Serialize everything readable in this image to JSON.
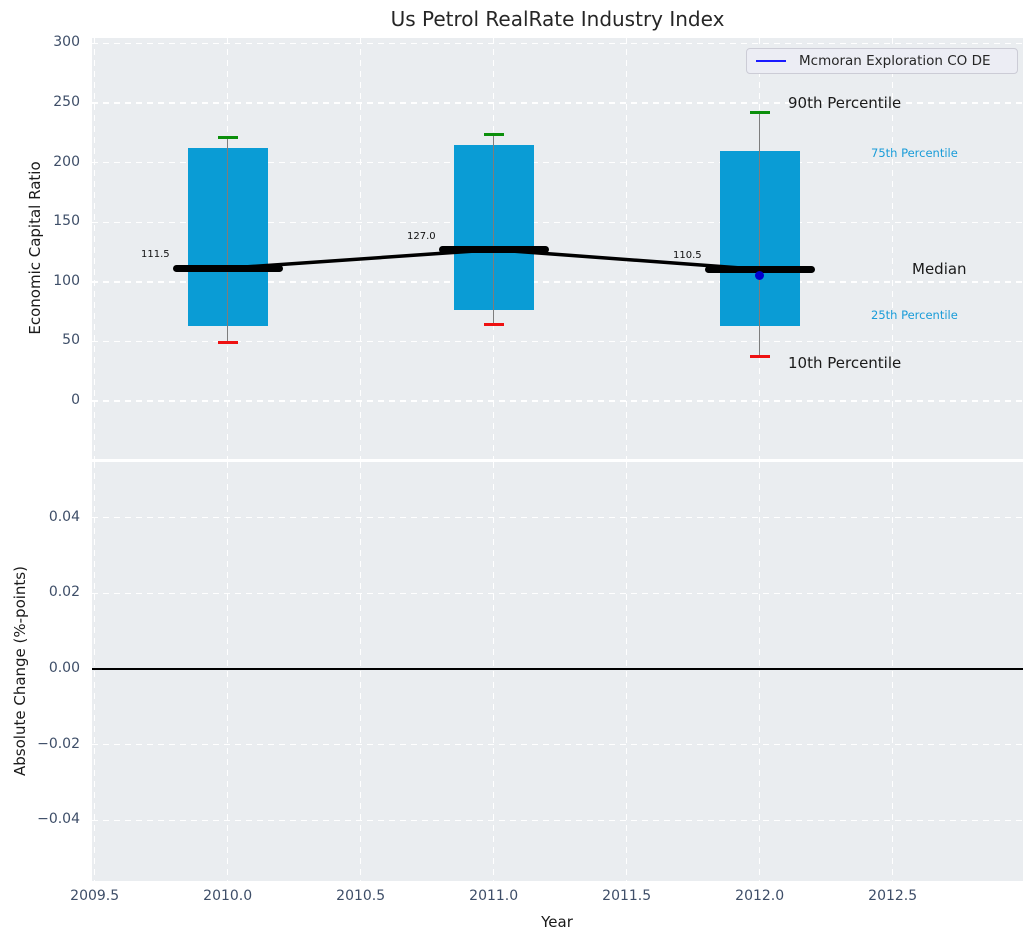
{
  "title": "Us Petrol RealRate Industry Index",
  "legend": {
    "label": "Mcmoran Exploration CO DE",
    "line_color": "#1a1aff",
    "bg": "#ecedf4"
  },
  "colors": {
    "panel_bg": "#eaedf0",
    "grid": "#ffffff",
    "box_fill": "#0a9cd5",
    "p90_cap": "#0b8f0b",
    "p10_cap": "#ee1111",
    "whisker": "#7d7d7d",
    "median_line": "#000000",
    "connector": "#000000",
    "company_marker": "#0000cd",
    "zero_line": "#000000",
    "tick_label": "#3e4e68",
    "small_percentile_label": "#199cd8"
  },
  "axes": {
    "top": {
      "ylabel": "Economic Capital Ratio",
      "ytick_values": [
        300,
        250,
        200,
        150,
        100,
        50,
        0
      ],
      "ytick_labels": [
        "300",
        "250",
        "200",
        "150",
        "100",
        "50",
        "0"
      ],
      "ylim": [
        -48.6,
        304.6
      ]
    },
    "bottom": {
      "ylabel": "Absolute Change (%-points)",
      "ytick_values": [
        0.04,
        0.02,
        0,
        -0.02,
        -0.04
      ],
      "ytick_labels": [
        "0.04",
        "0.02",
        "0.00",
        "−0.02",
        "−0.04"
      ],
      "ylim": [
        -0.056,
        0.0547
      ],
      "zero_line_value": 0
    },
    "x": {
      "label": "Year",
      "tick_values": [
        2009.5,
        2010.0,
        2010.5,
        2011.0,
        2011.5,
        2012.0,
        2012.5
      ],
      "tick_labels": [
        "2009.5",
        "2010.0",
        "2010.5",
        "2011.0",
        "2011.5",
        "2012.0",
        "2012.5"
      ],
      "xlim": [
        2009.49,
        2012.99
      ]
    }
  },
  "chart_data": {
    "type": "box-percentile-timeseries",
    "title": "Us Petrol RealRate Industry Index",
    "xlabel": "Year",
    "ylabel": "Economic Capital Ratio",
    "grid": true,
    "legend_position": "upper right",
    "years": [
      2010,
      2011,
      2012
    ],
    "series": [
      {
        "name": "90th percentile",
        "values": [
          221,
          224,
          242
        ]
      },
      {
        "name": "75th percentile",
        "values": [
          212,
          215,
          210
        ]
      },
      {
        "name": "median",
        "values": [
          111.5,
          127.0,
          110.5
        ]
      },
      {
        "name": "25th percentile",
        "values": [
          63,
          76,
          63
        ]
      },
      {
        "name": "10th percentile",
        "values": [
          49,
          64,
          37
        ]
      }
    ],
    "median_labels": [
      "111.5",
      "127.0",
      "110.5"
    ],
    "company_series": {
      "name": "Mcmoran Exploration CO DE",
      "points": [
        {
          "year": 2012,
          "value": 105
        }
      ]
    },
    "annotations": [
      {
        "key": "p90",
        "label": "90th Percentile",
        "axis_value": 250,
        "size": "large"
      },
      {
        "key": "p75",
        "label": "75th Percentile",
        "axis_value": 208,
        "size": "small"
      },
      {
        "key": "median",
        "label": "Median",
        "axis_value": 110.5,
        "size": "large"
      },
      {
        "key": "p25",
        "label": "25th Percentile",
        "axis_value": 72,
        "size": "small"
      },
      {
        "key": "p10",
        "label": "10th Percentile",
        "axis_value": 32,
        "size": "large"
      }
    ],
    "bottom_panel": {
      "ylabel": "Absolute Change (%-points)",
      "values": [],
      "zero_line": true
    }
  }
}
